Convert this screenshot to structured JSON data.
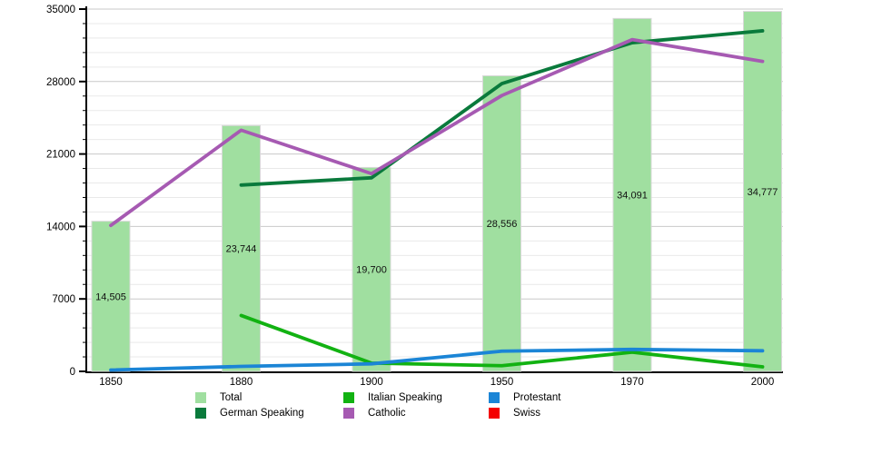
{
  "chart_data": {
    "type": "bar+line",
    "title": "",
    "categories": [
      "1850",
      "1880",
      "1900",
      "1950",
      "1970",
      "2000"
    ],
    "bar_series": {
      "name": "Total",
      "color": "#a0dfa0",
      "border_color": "#d8d8d8",
      "values": [
        14505,
        23744,
        19700,
        28556,
        34091,
        34777
      ],
      "value_labels": [
        "14,505",
        "23,744",
        "19,700",
        "28,556",
        "34,091",
        "34,777"
      ]
    },
    "line_series": [
      {
        "name": "German Speaking",
        "color": "#0a7a3c",
        "values": [
          null,
          18000,
          18700,
          27800,
          31750,
          32900
        ]
      },
      {
        "name": "Italian Speaking",
        "color": "#12b212",
        "values": [
          null,
          5400,
          800,
          550,
          1850,
          440
        ]
      },
      {
        "name": "Catholic",
        "color": "#a65ab2",
        "values": [
          14100,
          23300,
          19100,
          26650,
          32050,
          29950
        ]
      },
      {
        "name": "Protestant",
        "color": "#1b85d6",
        "values": [
          130,
          480,
          730,
          1950,
          2120,
          1990
        ]
      },
      {
        "name": "Swiss",
        "color": "#f40000",
        "values": [
          null,
          null,
          null,
          null,
          null,
          null
        ]
      }
    ],
    "y_axis": {
      "min": 0,
      "max": 35000,
      "major_step": 7000,
      "minor_step": 1400,
      "tick_labels": [
        "0",
        "7000",
        "14000",
        "21000",
        "28000",
        "35000"
      ]
    },
    "grid": {
      "horizontal": true,
      "major_color": "#c9c9c9",
      "minor_color": "#e9e9e9"
    },
    "legend": {
      "position": "bottom",
      "items": [
        {
          "label": "Total",
          "color": "#a0dfa0",
          "col": 0,
          "row": 0
        },
        {
          "label": "German Speaking",
          "color": "#0a7a3c",
          "col": 0,
          "row": 1
        },
        {
          "label": "Italian Speaking",
          "color": "#12b212",
          "col": 1,
          "row": 0
        },
        {
          "label": "Catholic",
          "color": "#a65ab2",
          "col": 1,
          "row": 1
        },
        {
          "label": "Protestant",
          "color": "#1b85d6",
          "col": 2,
          "row": 0
        },
        {
          "label": "Swiss",
          "color": "#f40000",
          "col": 2,
          "row": 1
        }
      ]
    }
  }
}
